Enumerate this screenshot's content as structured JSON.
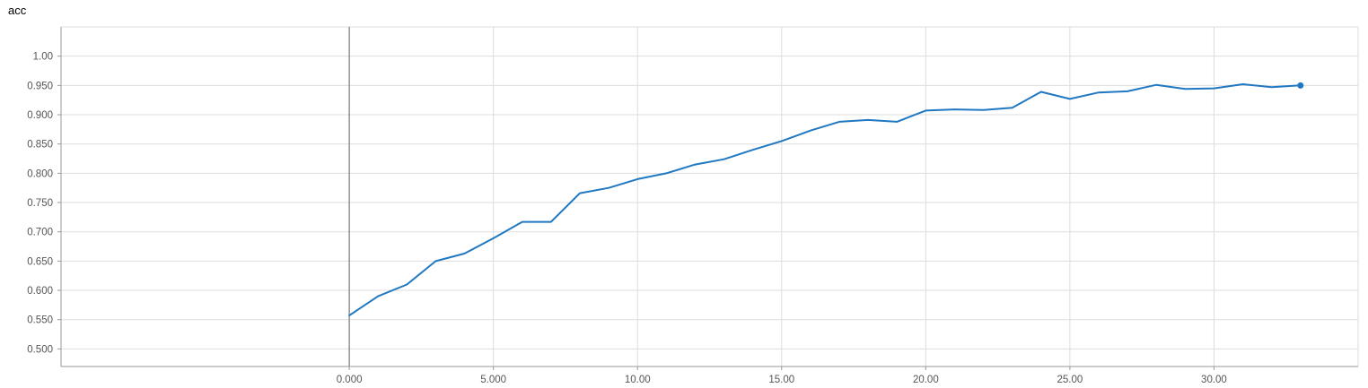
{
  "chart_data": {
    "type": "line",
    "title": "acc",
    "xlabel": "",
    "ylabel": "",
    "xlim": [
      -10,
      35
    ],
    "ylim": [
      0.47,
      1.05
    ],
    "x_ticks": [
      0,
      5,
      10,
      15,
      20,
      25,
      30
    ],
    "x_tick_labels": [
      "0.000",
      "5.000",
      "10.00",
      "15.00",
      "20.00",
      "25.00",
      "30.00"
    ],
    "y_ticks": [
      0.5,
      0.55,
      0.6,
      0.65,
      0.7,
      0.75,
      0.8,
      0.85,
      0.9,
      0.95,
      1.0
    ],
    "y_tick_labels": [
      "0.500",
      "0.550",
      "0.600",
      "0.650",
      "0.700",
      "0.750",
      "0.800",
      "0.850",
      "0.900",
      "0.950",
      "1.00"
    ],
    "grid": true,
    "colors": {
      "line": "#1f78c1",
      "grid": "#dddddd",
      "axis": "#999999",
      "zero_line": "#777777"
    },
    "series": [
      {
        "x": [
          0,
          1,
          2,
          3,
          4,
          5,
          6,
          7,
          8,
          9,
          10,
          11,
          12,
          13,
          14,
          15,
          16,
          17,
          18,
          19,
          20,
          21,
          22,
          23,
          24,
          25,
          26,
          27,
          28,
          29,
          30,
          31,
          32,
          33
        ],
        "values": [
          0.557,
          0.59,
          0.61,
          0.65,
          0.663,
          0.689,
          0.717,
          0.717,
          0.766,
          0.775,
          0.79,
          0.8,
          0.815,
          0.824,
          0.84,
          0.855,
          0.873,
          0.888,
          0.891,
          0.888,
          0.907,
          0.909,
          0.908,
          0.912,
          0.939,
          0.927,
          0.938,
          0.94,
          0.951,
          0.944,
          0.945,
          0.952,
          0.947,
          0.95
        ]
      }
    ]
  }
}
